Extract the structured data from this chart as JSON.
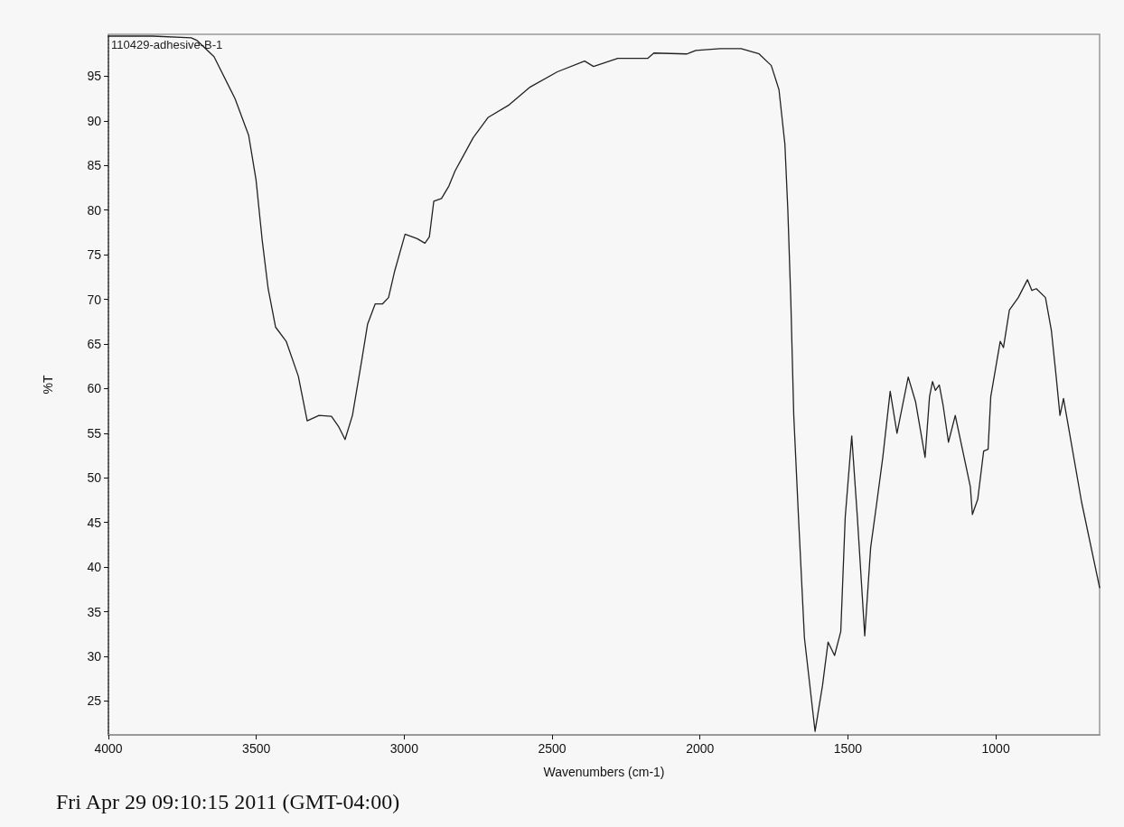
{
  "chart_data": {
    "type": "line",
    "xlabel": "Wavenumbers (cm-1)",
    "ylabel": "%T",
    "annotations": [
      "110429-adhesive-B-1",
      "Fri Apr 29 09:10:15 2011 (GMT-04:00)"
    ],
    "x": [
      4000,
      3850,
      3720,
      3700,
      3643,
      3572,
      3526,
      3501,
      3480,
      3460,
      3435,
      3399,
      3358,
      3328,
      3288,
      3246,
      3221,
      3200,
      3175,
      3144,
      3124,
      3098,
      3073,
      3053,
      3032,
      2997,
      2956,
      2930,
      2915,
      2900,
      2874,
      2849,
      2828,
      2767,
      2716,
      2645,
      2574,
      2482,
      2390,
      2360,
      2278,
      2177,
      2156,
      2044,
      2014,
      1932,
      1861,
      1800,
      1759,
      1733,
      1713,
      1703,
      1693,
      1683,
      1667,
      1647,
      1611,
      1586,
      1567,
      1545,
      1524,
      1509,
      1487,
      1468,
      1443,
      1423,
      1402,
      1382,
      1357,
      1334,
      1296,
      1271,
      1239,
      1224,
      1214,
      1204,
      1191,
      1178,
      1160,
      1137,
      1086,
      1079,
      1061,
      1041,
      1026,
      1017,
      985,
      974,
      954,
      924,
      893,
      878,
      863,
      832,
      812,
      796,
      783,
      771,
      710,
      649
    ],
    "series": [
      {
        "color": "#222222",
        "values": [
          99.5,
          99.5,
          99.3,
          99.0,
          97.2,
          92.5,
          88.4,
          83.4,
          76.6,
          71.2,
          66.9,
          65.3,
          61.4,
          56.4,
          57.0,
          56.9,
          55.7,
          54.3,
          57.0,
          63.1,
          67.2,
          69.5,
          69.5,
          70.2,
          73.2,
          77.3,
          76.8,
          76.3,
          77.0,
          81.0,
          81.3,
          82.7,
          84.4,
          88.1,
          90.4,
          91.8,
          93.8,
          95.5,
          96.7,
          96.1,
          97.0,
          97.0,
          97.6,
          97.5,
          97.9,
          98.1,
          98.1,
          97.5,
          96.2,
          93.5,
          87.4,
          80.0,
          69.9,
          57.0,
          45.6,
          32.1,
          21.6,
          26.7,
          31.6,
          30.1,
          32.8,
          45.6,
          54.7,
          45.6,
          32.3,
          42.2,
          47.3,
          52.3,
          59.7,
          55.0,
          61.3,
          58.5,
          52.3,
          59.1,
          60.8,
          59.8,
          60.4,
          58.1,
          54.0,
          57.0,
          49.0,
          45.9,
          47.6,
          53.0,
          53.2,
          59.1,
          65.3,
          64.6,
          68.8,
          70.2,
          72.2,
          71.0,
          71.2,
          70.2,
          66.5,
          61.4,
          57.0,
          58.9,
          47.3,
          37.7
        ]
      }
    ],
    "xlim": [
      4000,
      649
    ],
    "ylim": [
      21.2,
      99.7
    ],
    "xticks": [
      4000,
      3500,
      3000,
      2500,
      2000,
      1500,
      1000
    ],
    "yticks": [
      25,
      30,
      35,
      40,
      45,
      50,
      55,
      60,
      65,
      70,
      75,
      80,
      85,
      90,
      95
    ],
    "grid": false,
    "marker": "none",
    "line_style": "solid"
  }
}
